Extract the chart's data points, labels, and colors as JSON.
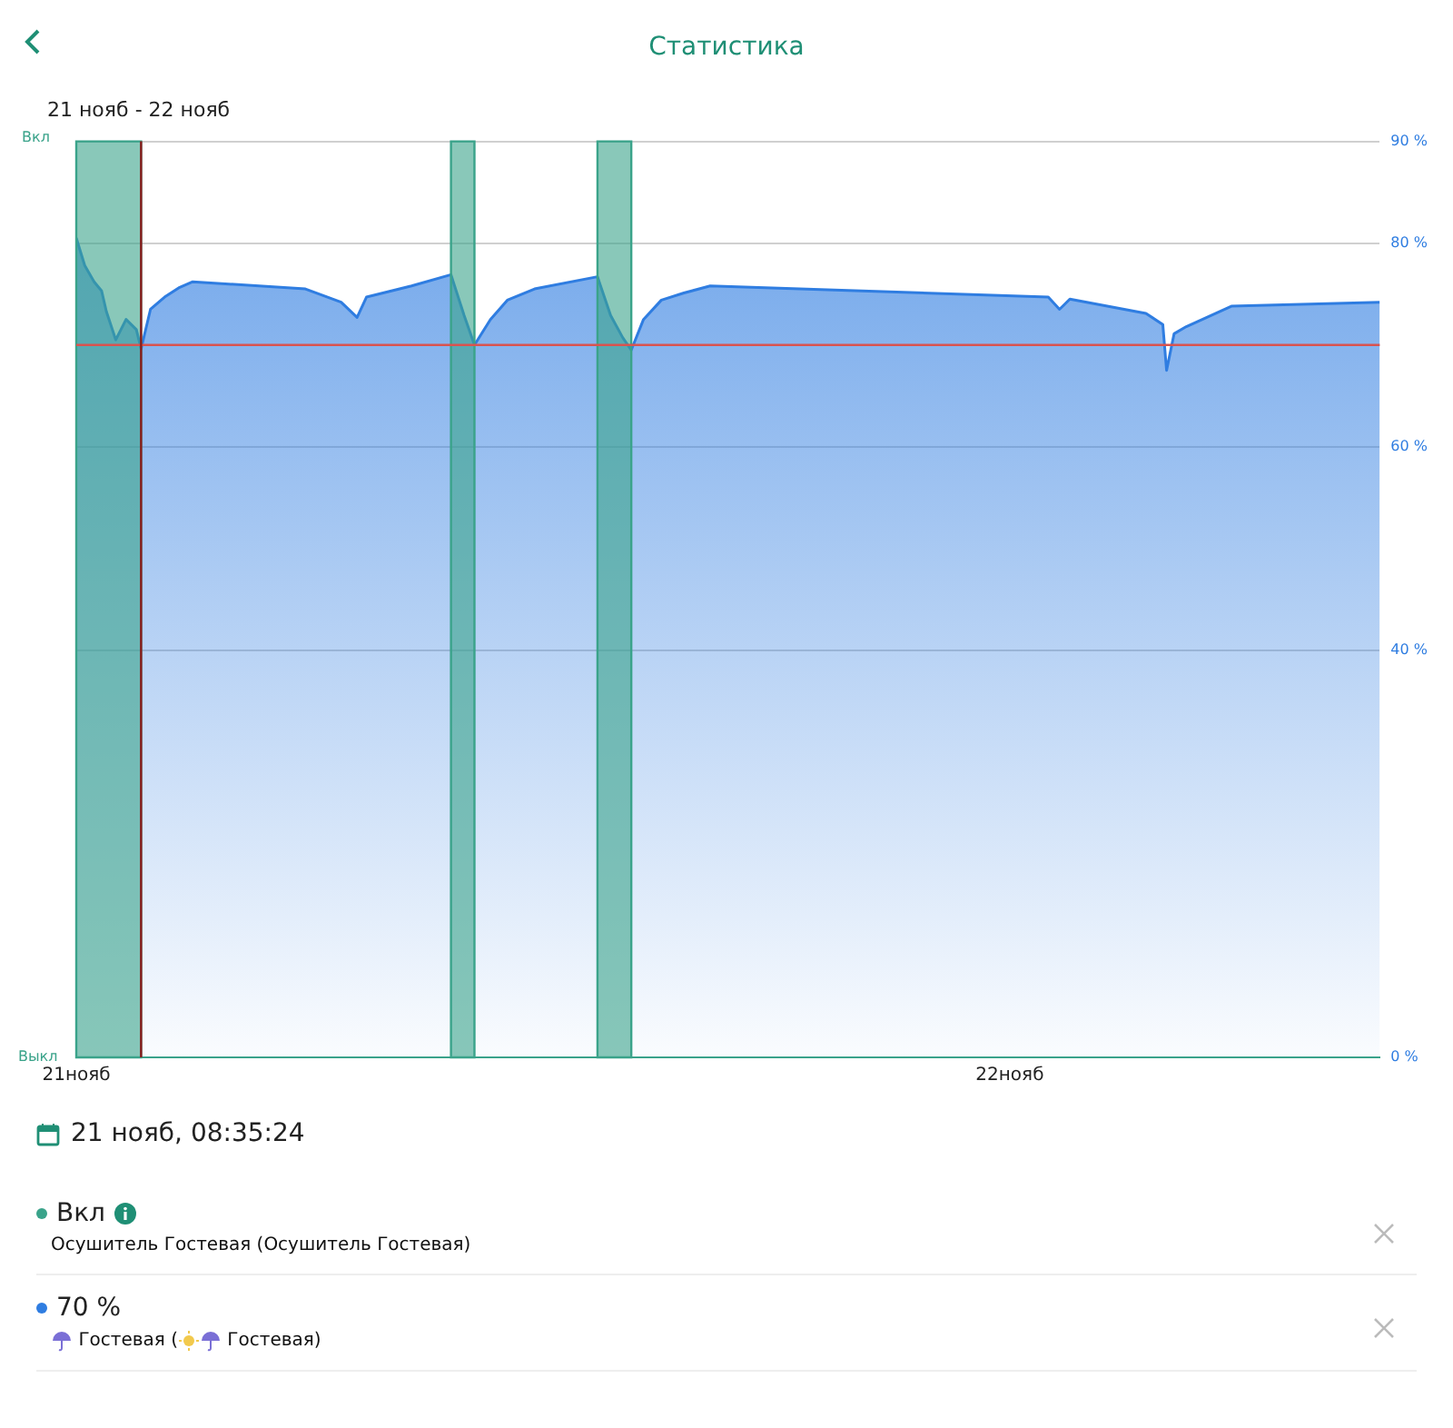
{
  "chart_data": {
    "type": "area",
    "title": "Статистика",
    "subtitle": "21 нояб - 22 нояб",
    "annotations": [
      "Вкл",
      "Выкл",
      "21 нояб, 08:35:24",
      "Вкл",
      "Осушитель Гостевая (Осушитель Гостевая)",
      "70 %"
    ],
    "xlim": [
      "--11-21T07:26",
      "--11-22T06:34"
    ],
    "xticks": [
      {
        "value": "--11-21T07:26",
        "label": "21нояб"
      },
      {
        "value": "--11-22",
        "label": "22нояб"
      }
    ],
    "ylim": [
      0,
      90
    ],
    "yticks": [
      {
        "value": 0,
        "label": "0 %"
      },
      {
        "value": 40,
        "label": "40 %"
      },
      {
        "value": 60,
        "label": "60 %"
      },
      {
        "value": 80,
        "label": "80 %"
      },
      {
        "value": 90,
        "label": "90 %"
      }
    ],
    "grid": "y",
    "marker": "none",
    "bands": [
      {
        "axis": "x",
        "from": "--11-21T07:26",
        "to": "--11-21T08:35",
        "color": "#3aa38a"
      },
      {
        "axis": "x",
        "from": "--11-21T14:05",
        "to": "--11-21T14:30",
        "color": "#3aa38a"
      },
      {
        "axis": "x",
        "from": "--11-21T16:41",
        "to": "--11-21T17:17",
        "color": "#3aa38a"
      }
    ],
    "ref_lines": [
      {
        "axis": "y",
        "value": 70,
        "color": "#d9534f"
      },
      {
        "axis": "x",
        "value": "--11-21T08:35",
        "color": "#8b1a1a"
      }
    ],
    "series": [
      {
        "name": "Гостевая ( Гостевая)",
        "color": "#2f7de1",
        "x": [
          "--11-21T07:26",
          "--11-21T07:35",
          "--11-21T07:45",
          "--11-21T07:53",
          "--11-21T07:58",
          "--11-21T08:08",
          "--11-21T08:19",
          "--11-21T08:30",
          "--11-21T08:35",
          "--11-21T08:45",
          "--11-21T09:00",
          "--11-21T09:15",
          "--11-21T09:30",
          "--11-21T11:30",
          "--11-21T12:08",
          "--11-21T12:25",
          "--11-21T12:35",
          "--11-21T13:23",
          "--11-21T14:05",
          "--11-21T14:19",
          "--11-21T14:30",
          "--11-21T14:47",
          "--11-21T15:05",
          "--11-21T15:34",
          "--11-21T16:41",
          "--11-21T16:55",
          "--11-21T17:08",
          "--11-21T17:17",
          "--11-21T17:30",
          "--11-21T17:49",
          "--11-21T18:13",
          "--11-21T18:41",
          "--11-22T00:41",
          "--11-22T00:53",
          "--11-22T01:04",
          "--11-22T02:25",
          "--11-22T02:43",
          "--11-22T02:47",
          "--11-22T02:55",
          "--11-22T03:08",
          "--11-22T03:56",
          "--11-22T06:34"
        ],
        "values": [
          80.5,
          77.8,
          76.2,
          75.3,
          73.3,
          70.5,
          72.5,
          71.5,
          69.6,
          73.5,
          74.7,
          75.6,
          76.2,
          75.5,
          74.2,
          72.7,
          74.7,
          75.8,
          76.9,
          72.9,
          70.0,
          72.5,
          74.4,
          75.5,
          76.7,
          72.9,
          70.7,
          69.5,
          72.5,
          74.4,
          75.1,
          75.8,
          74.7,
          73.5,
          74.5,
          73.1,
          72.0,
          67.5,
          71.1,
          71.8,
          73.8,
          74.2
        ]
      }
    ]
  }
}
